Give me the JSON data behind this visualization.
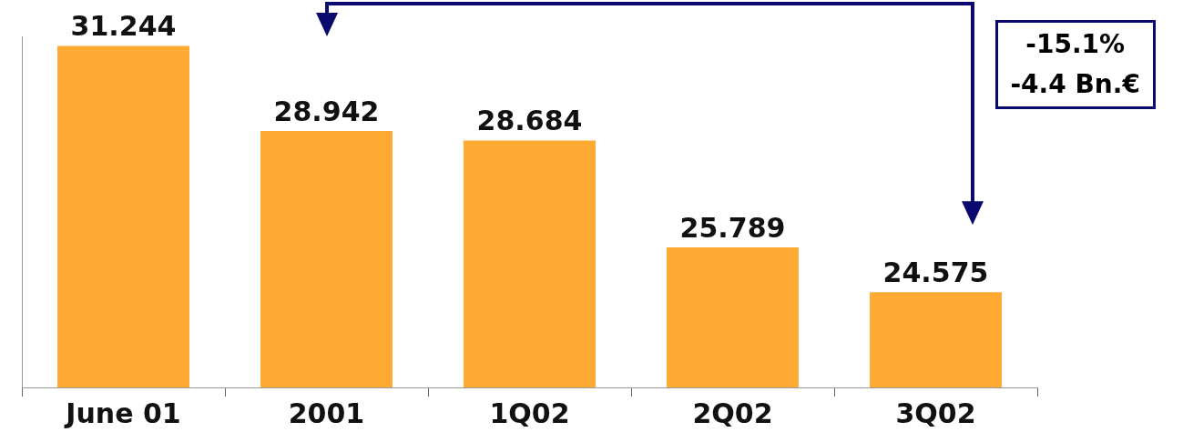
{
  "chart_data": {
    "type": "bar",
    "categories": [
      "June 01",
      "2001",
      "1Q02",
      "2Q02",
      "3Q02"
    ],
    "values": [
      31.244,
      28.942,
      28.684,
      25.789,
      24.575
    ],
    "color": "#ffaa33",
    "ylim": [
      22,
      31.5
    ],
    "tick_labels": "x",
    "data_labels": true,
    "grid": false,
    "legend": false,
    "annotations": [
      "-15.1%",
      "-4.4 Bn.€"
    ]
  }
}
